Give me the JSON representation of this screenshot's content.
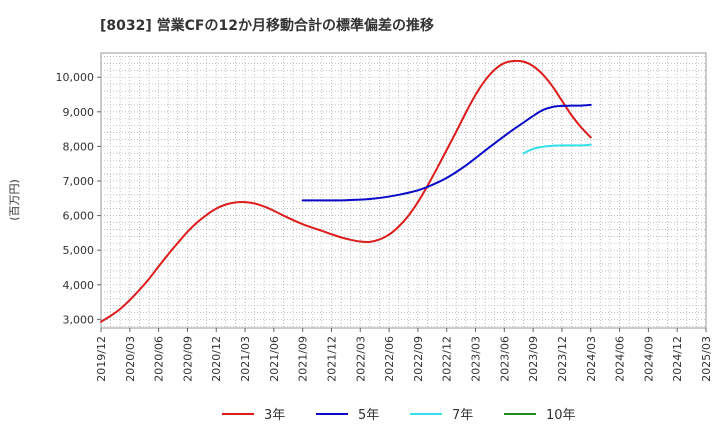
{
  "chart_data": {
    "type": "line",
    "title": "[8032]  営業CFの12か月移動合計の標準偏差の推移",
    "ylabel": "(百万円)",
    "xlabel": "",
    "ylim": [
      2750,
      10700
    ],
    "yticks": [
      3000,
      4000,
      5000,
      6000,
      7000,
      8000,
      9000,
      10000
    ],
    "ytick_labels": [
      "3,000",
      "4,000",
      "5,000",
      "6,000",
      "7,000",
      "8,000",
      "9,000",
      "10,000"
    ],
    "xticks": [
      "2019/12",
      "2020/03",
      "2020/06",
      "2020/09",
      "2020/12",
      "2021/03",
      "2021/06",
      "2021/09",
      "2021/12",
      "2022/03",
      "2022/06",
      "2022/09",
      "2022/12",
      "2023/03",
      "2023/06",
      "2023/09",
      "2023/12",
      "2024/03",
      "2024/06",
      "2024/09",
      "2024/12",
      "2025/03"
    ],
    "grid": true,
    "legend_position": "bottom",
    "series": [
      {
        "name": "3年",
        "color": "#dd1c1c",
        "x": [
          "2019/12",
          "2020/01",
          "2020/02",
          "2020/03",
          "2020/04",
          "2020/05",
          "2020/06",
          "2020/07",
          "2020/08",
          "2020/09",
          "2020/10",
          "2020/11",
          "2020/12",
          "2021/01",
          "2021/02",
          "2021/03",
          "2021/04",
          "2021/05",
          "2021/06",
          "2021/07",
          "2021/08",
          "2021/09",
          "2021/10",
          "2021/11",
          "2021/12",
          "2022/01",
          "2022/02",
          "2022/03",
          "2022/04",
          "2022/05",
          "2022/06",
          "2022/07",
          "2022/08",
          "2022/09",
          "2022/10",
          "2022/11",
          "2022/12",
          "2023/01",
          "2023/02",
          "2023/03",
          "2023/04",
          "2023/05",
          "2023/06",
          "2023/07",
          "2023/08",
          "2023/09",
          "2023/10",
          "2023/11",
          "2023/12",
          "2024/01",
          "2024/02",
          "2024/03"
        ],
        "values": [
          2930,
          3100,
          3300,
          3560,
          3850,
          4170,
          4530,
          4880,
          5210,
          5530,
          5800,
          6020,
          6200,
          6320,
          6380,
          6390,
          6350,
          6260,
          6140,
          6000,
          5870,
          5750,
          5650,
          5560,
          5460,
          5370,
          5300,
          5250,
          5240,
          5310,
          5450,
          5680,
          5990,
          6390,
          6860,
          7370,
          7900,
          8430,
          8980,
          9490,
          9910,
          10220,
          10410,
          10470,
          10450,
          10320,
          10080,
          9740,
          9320,
          8900,
          8550,
          8260
        ]
      },
      {
        "name": "5年",
        "color": "#0a0ac8",
        "x": [
          "2021/09",
          "2021/10",
          "2021/11",
          "2021/12",
          "2022/01",
          "2022/02",
          "2022/03",
          "2022/04",
          "2022/05",
          "2022/06",
          "2022/07",
          "2022/08",
          "2022/09",
          "2022/10",
          "2022/11",
          "2022/12",
          "2023/01",
          "2023/02",
          "2023/03",
          "2023/04",
          "2023/05",
          "2023/06",
          "2023/07",
          "2023/08",
          "2023/09",
          "2023/10",
          "2023/11",
          "2023/12",
          "2024/01",
          "2024/02",
          "2024/03"
        ],
        "values": [
          6440,
          6440,
          6440,
          6440,
          6440,
          6450,
          6460,
          6480,
          6510,
          6550,
          6600,
          6660,
          6730,
          6830,
          6950,
          7090,
          7260,
          7450,
          7660,
          7880,
          8090,
          8300,
          8500,
          8690,
          8880,
          9050,
          9140,
          9170,
          9180,
          9180,
          9200
        ]
      },
      {
        "name": "7年",
        "color": "#33e0ec",
        "x": [
          "2023/08",
          "2023/09",
          "2023/10",
          "2023/11",
          "2023/12",
          "2024/01",
          "2024/02",
          "2024/03"
        ],
        "values": [
          7800,
          7930,
          7990,
          8020,
          8030,
          8030,
          8030,
          8050
        ]
      },
      {
        "name": "10年",
        "color": "#1e8c1e",
        "x": [],
        "values": []
      }
    ]
  }
}
